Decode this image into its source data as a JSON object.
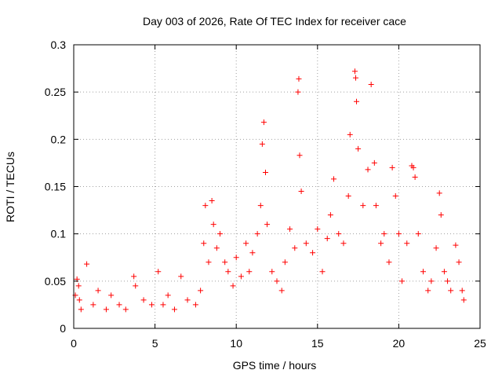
{
  "chart_data": {
    "type": "scatter",
    "title": "Day 003 of 2026, Rate Of TEC Index for receiver cace",
    "xlabel": "GPS time / hours",
    "ylabel": "ROTI / TECUs",
    "xlim": [
      0,
      25
    ],
    "ylim": [
      0,
      0.3
    ],
    "xticks": [
      0,
      5,
      10,
      15,
      20,
      25
    ],
    "yticks": [
      0,
      0.05,
      0.1,
      0.15,
      0.2,
      0.25,
      0.3
    ],
    "xtick_labels": [
      "0",
      "5",
      "10",
      "15",
      "20",
      "25"
    ],
    "ytick_labels": [
      "0",
      "0.05",
      "0.1",
      "0.15",
      "0.2",
      "0.25",
      "0.3"
    ],
    "grid": true,
    "marker": "+",
    "color": "#ff0000",
    "series": [
      {
        "x": [
          0.1,
          0.2,
          0.3,
          0.35,
          0.45,
          0.8,
          1.2,
          1.5,
          2.0,
          2.3,
          2.8,
          3.2,
          3.7,
          3.8,
          4.3,
          4.8,
          5.2,
          5.5,
          5.8,
          6.2,
          6.6,
          7.0,
          7.5,
          7.8,
          8.0,
          8.1,
          8.3,
          8.5,
          8.6,
          8.8,
          9.0,
          9.3,
          9.5,
          9.8,
          10.0,
          10.3,
          10.6,
          10.8,
          11.0,
          11.3,
          11.5,
          11.6,
          11.7,
          11.8,
          11.9,
          12.2,
          12.5,
          12.8,
          13.0,
          13.3,
          13.6,
          13.8,
          13.85,
          13.9,
          14.0,
          14.3,
          14.7,
          15.0,
          15.3,
          15.6,
          15.8,
          16.0,
          16.3,
          16.6,
          16.9,
          17.0,
          17.3,
          17.35,
          17.4,
          17.5,
          17.8,
          18.1,
          18.3,
          18.5,
          18.6,
          18.9,
          19.1,
          19.4,
          19.6,
          19.8,
          20.0,
          20.2,
          20.5,
          20.8,
          20.9,
          21.0,
          21.2,
          21.5,
          21.8,
          22.0,
          22.3,
          22.5,
          22.6,
          22.8,
          23.0,
          23.2,
          23.5,
          23.7,
          23.9,
          24.0
        ],
        "y": [
          0.035,
          0.052,
          0.045,
          0.03,
          0.02,
          0.068,
          0.025,
          0.04,
          0.02,
          0.035,
          0.025,
          0.02,
          0.055,
          0.045,
          0.03,
          0.025,
          0.06,
          0.025,
          0.035,
          0.02,
          0.055,
          0.03,
          0.025,
          0.04,
          0.09,
          0.13,
          0.07,
          0.135,
          0.11,
          0.085,
          0.1,
          0.07,
          0.06,
          0.045,
          0.075,
          0.055,
          0.09,
          0.06,
          0.08,
          0.1,
          0.13,
          0.195,
          0.218,
          0.165,
          0.11,
          0.06,
          0.05,
          0.04,
          0.07,
          0.105,
          0.085,
          0.25,
          0.264,
          0.183,
          0.145,
          0.09,
          0.08,
          0.105,
          0.06,
          0.095,
          0.12,
          0.158,
          0.1,
          0.09,
          0.14,
          0.205,
          0.272,
          0.265,
          0.24,
          0.19,
          0.13,
          0.168,
          0.258,
          0.175,
          0.13,
          0.09,
          0.1,
          0.07,
          0.17,
          0.14,
          0.1,
          0.05,
          0.09,
          0.172,
          0.17,
          0.16,
          0.1,
          0.06,
          0.04,
          0.05,
          0.085,
          0.143,
          0.12,
          0.06,
          0.05,
          0.04,
          0.088,
          0.07,
          0.04,
          0.03
        ]
      }
    ]
  }
}
